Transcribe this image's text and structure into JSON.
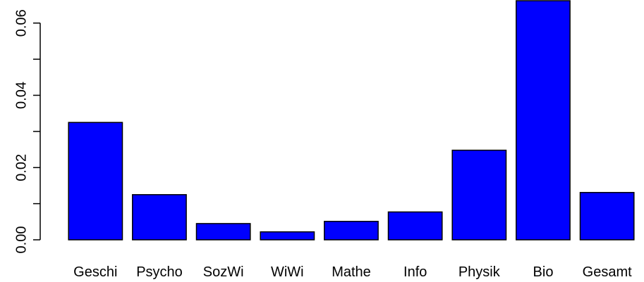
{
  "chart_data": {
    "type": "bar",
    "title": "",
    "xlabel": "",
    "ylabel": "",
    "categories": [
      "Geschi",
      "Psycho",
      "SozWi",
      "WiWi",
      "Mathe",
      "Info",
      "Physik",
      "Bio",
      "Gesamt"
    ],
    "values": [
      0.0325,
      0.0125,
      0.0045,
      0.0022,
      0.0051,
      0.0077,
      0.0248,
      0.0662,
      0.0131
    ],
    "ylim": [
      0,
      0.066
    ],
    "yticks": [
      0.0,
      0.02,
      0.04,
      0.06
    ],
    "ytick_labels": [
      "0.00",
      "0.02",
      "0.04",
      "0.06"
    ],
    "yticks_minor": [
      0.01,
      0.03,
      0.05
    ],
    "grid": false,
    "legend": "none",
    "colors": {
      "bar_fill": "#0000ff",
      "bar_stroke": "#000000",
      "axis": "#000000"
    }
  }
}
